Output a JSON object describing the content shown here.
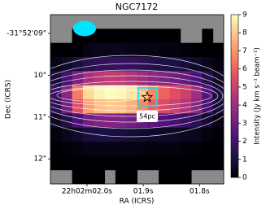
{
  "chart_data": {
    "type": "heatmap",
    "title": "NGC7172",
    "xlabel": "RA (ICRS)",
    "ylabel": "Dec (ICRS)",
    "colorbar_label": "Intensity (Jy km s⁻¹ beam⁻¹)",
    "colormap": "magma",
    "zlim": [
      0,
      9
    ],
    "cticks": [
      0,
      1,
      2,
      3,
      4,
      5,
      6,
      7,
      8,
      9
    ],
    "xlim": [
      2.065,
      1.757
    ],
    "xticks": [
      {
        "value": 2.0,
        "label": "22h02m02.0s"
      },
      {
        "value": 1.9,
        "label": "01.9s"
      },
      {
        "value": 1.8,
        "label": "01.8s"
      }
    ],
    "ylim": [
      12.6,
      8.55
    ],
    "yticks": [
      {
        "value": 9,
        "label": "-31°52'09\""
      },
      {
        "value": 10,
        "label": "10\""
      },
      {
        "value": 11,
        "label": "11\""
      },
      {
        "value": 12,
        "label": "12\""
      }
    ],
    "annotation": "54pc",
    "z": [
      [
        null,
        null,
        null,
        null,
        null,
        null,
        null,
        null,
        null,
        null,
        null,
        null,
        null,
        null,
        null,
        null
      ],
      [
        null,
        null,
        0,
        0,
        0,
        0,
        0,
        0,
        0,
        0,
        0,
        0,
        null,
        null,
        0,
        null
      ],
      [
        0,
        0,
        0,
        0.3,
        0.4,
        0.4,
        0.4,
        0.3,
        0.3,
        0.3,
        0.2,
        0.2,
        0.1,
        0,
        0,
        0
      ],
      [
        0.3,
        0.6,
        1,
        1.4,
        1.6,
        1.7,
        1.7,
        1.6,
        1.5,
        1.3,
        1.2,
        1.1,
        0.9,
        0.7,
        0.4,
        0.2
      ],
      [
        1,
        2,
        3.2,
        4.2,
        4.6,
        4.8,
        4.7,
        4.4,
        4,
        3.6,
        3.3,
        3,
        2.7,
        2.2,
        1.3,
        0.6
      ],
      [
        1.8,
        3.5,
        6.5,
        8.3,
        8.8,
        9,
        8.9,
        8.6,
        7.8,
        6.8,
        6,
        5.5,
        5,
        4,
        2.3,
        1
      ],
      [
        1.5,
        3,
        5.5,
        7.2,
        7.8,
        8,
        7.9,
        7.5,
        6.8,
        6,
        5.4,
        5,
        4.4,
        3.5,
        2,
        0.9
      ],
      [
        0.6,
        1.2,
        2.2,
        3,
        3.3,
        3.4,
        3.3,
        3.1,
        2.8,
        2.5,
        2.3,
        2.1,
        1.8,
        1.4,
        0.8,
        0.3
      ],
      [
        0.2,
        0.4,
        0.7,
        1,
        1.1,
        1.1,
        1,
        0.9,
        0.8,
        0.7,
        0.6,
        0.6,
        0.5,
        0.4,
        0.2,
        0.1
      ],
      [
        0,
        0.1,
        0.2,
        0.3,
        0.3,
        0.3,
        0.3,
        0.3,
        0.2,
        0.2,
        0.2,
        0.2,
        0.1,
        0.1,
        0,
        0
      ],
      [
        0,
        0,
        0,
        0,
        0,
        0,
        0,
        0,
        0,
        0,
        0,
        0,
        0,
        0,
        0,
        0
      ],
      [
        null,
        null,
        0,
        0,
        0,
        null,
        0,
        0,
        null,
        null,
        0,
        0,
        0,
        null,
        null,
        null
      ]
    ]
  }
}
